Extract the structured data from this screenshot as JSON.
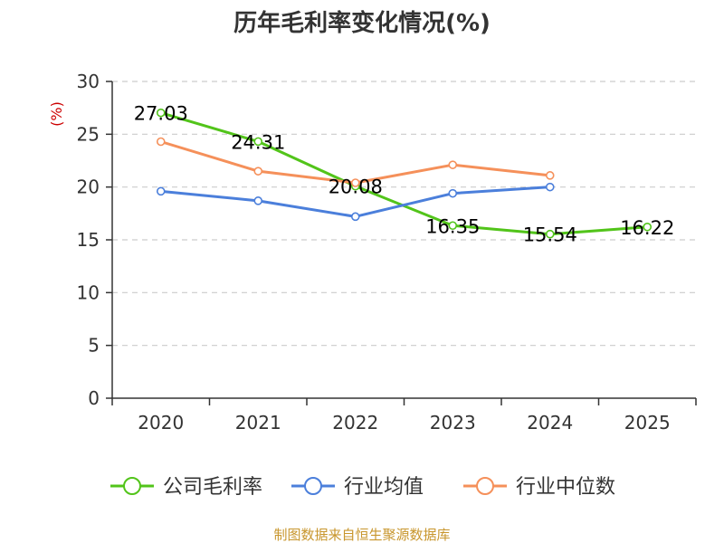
{
  "chart_data": {
    "type": "line",
    "title": "历年毛利率变化情况(%)",
    "ylabel": "(%)",
    "xlabel": "",
    "categories": [
      "2020",
      "2021",
      "2022",
      "2023",
      "2024",
      "2025"
    ],
    "ylim": [
      0,
      30
    ],
    "yticks": [
      "0",
      "5",
      "10",
      "15",
      "20",
      "25",
      "30"
    ],
    "grid": "horizontal-dashed",
    "legend_position": "bottom",
    "series": [
      {
        "name": "公司毛利率",
        "color": "#52c41a",
        "values": [
          27.03,
          24.31,
          20.08,
          16.35,
          15.54,
          16.22
        ],
        "labels": [
          "27.03",
          "24.31",
          "20.08",
          "16.35",
          "15.54",
          "16.22"
        ]
      },
      {
        "name": "行业均值",
        "color": "#4b7fdb",
        "values": [
          19.6,
          18.7,
          17.2,
          19.4,
          20.0,
          null
        ]
      },
      {
        "name": "行业中位数",
        "color": "#f5905a",
        "values": [
          24.3,
          21.5,
          20.4,
          22.1,
          21.1,
          null
        ]
      }
    ],
    "source": "制图数据来自恒生聚源数据库",
    "unit_color": "#cc0000",
    "source_color": "#c8962d"
  }
}
